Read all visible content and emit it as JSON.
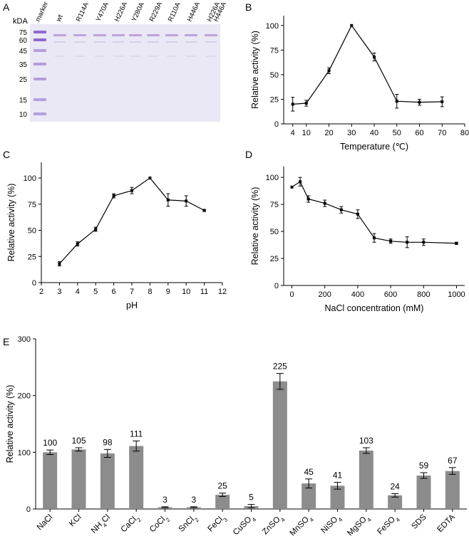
{
  "panel_letters": [
    "A",
    "B",
    "C",
    "D",
    "E"
  ],
  "gel": {
    "unit_label": "kDA",
    "lanes": [
      "marker",
      "wt",
      "R114A",
      "Y470A",
      "H226A",
      "Y280A",
      "R229A",
      "R110A",
      "H446A",
      "H226A\nH446A"
    ],
    "marker_sizes": [
      "75",
      "60",
      "45",
      "35",
      "25",
      "15",
      "10"
    ],
    "colors": {
      "background": "#e9e8f4",
      "band": "#b89ad6",
      "marker": "#8a63c8"
    }
  },
  "chart_data": [
    {
      "id": "B",
      "type": "line",
      "xlabel": "Temperature (℃)",
      "ylabel": "Relative activity (%)",
      "x": [
        4,
        10,
        20,
        30,
        40,
        50,
        60,
        70
      ],
      "values": [
        20,
        21,
        54,
        100,
        68,
        23,
        22,
        22.5
      ],
      "errors": [
        7,
        3,
        3,
        0,
        4,
        7,
        3,
        5
      ],
      "xlim": [
        0,
        80
      ],
      "ylim": [
        0,
        110
      ],
      "xticks": [
        "4",
        "10",
        "20",
        "30",
        "40",
        "50",
        "60",
        "70",
        "80"
      ],
      "yticks": [
        "0",
        "25",
        "50",
        "75",
        "100"
      ]
    },
    {
      "id": "C",
      "type": "line",
      "xlabel": "pH",
      "ylabel": "Relative activity (%)",
      "x": [
        3,
        4,
        5,
        6,
        7,
        8,
        9,
        10,
        11
      ],
      "values": [
        18,
        37,
        51,
        83,
        88,
        100,
        79,
        78,
        69
      ],
      "errors": [
        2,
        2,
        2,
        2,
        3,
        0,
        6,
        5,
        1
      ],
      "xlim": [
        2,
        12
      ],
      "ylim": [
        0,
        115
      ],
      "xticks": [
        "2",
        "3",
        "4",
        "5",
        "6",
        "7",
        "8",
        "9",
        "10",
        "11",
        "12"
      ],
      "yticks": [
        "0",
        "25",
        "50",
        "75",
        "100"
      ]
    },
    {
      "id": "D",
      "type": "line",
      "xlabel": "NaCl concentration (mM)",
      "ylabel": "Relative activity (%)",
      "x": [
        0,
        50,
        100,
        200,
        300,
        400,
        500,
        600,
        700,
        800,
        1000
      ],
      "values": [
        91,
        96,
        80,
        76,
        70,
        66,
        44,
        41,
        40,
        40,
        39
      ],
      "errors": [
        0,
        4,
        3,
        3,
        3,
        4,
        4,
        2,
        5,
        3,
        1
      ],
      "xlim": [
        -50,
        1050
      ],
      "ylim": [
        0,
        110
      ],
      "xticks": [
        "0",
        "200",
        "400",
        "600",
        "800",
        "1000"
      ],
      "yticks": [
        "0",
        "25",
        "50",
        "75",
        "100"
      ]
    },
    {
      "id": "E",
      "type": "bar",
      "xlabel": "",
      "ylabel": "Relative activity  (%)",
      "categories": [
        "NaCl",
        "KCl",
        "NH4Cl",
        "CaCl2",
        "CoCl2",
        "SnCl2",
        "FeCl3",
        "CuSO4",
        "ZnSO4",
        "MnSO4",
        "NiSO4",
        "MgSO4",
        "FeSO4",
        "SDS",
        "EDTA"
      ],
      "category_labels": [
        {
          "base": "NaCl",
          "sub": ""
        },
        {
          "base": "KCl",
          "sub": ""
        },
        {
          "base": "NH",
          "sub": "4",
          "tail": "Cl"
        },
        {
          "base": "CaCl",
          "sub": "2"
        },
        {
          "base": "CoCl",
          "sub": "2"
        },
        {
          "base": "SnCl",
          "sub": "2"
        },
        {
          "base": "FeCl",
          "sub": "3"
        },
        {
          "base": "CuSO",
          "sub": "4"
        },
        {
          "base": "ZnSO",
          "sub": "4"
        },
        {
          "base": "MnSO",
          "sub": "4"
        },
        {
          "base": "NiSO",
          "sub": "4"
        },
        {
          "base": "MgSO",
          "sub": "4"
        },
        {
          "base": "FeSO",
          "sub": "4"
        },
        {
          "base": "SDS",
          "sub": ""
        },
        {
          "base": "EDTA",
          "sub": ""
        }
      ],
      "values": [
        100,
        105,
        98,
        111,
        3,
        3,
        25,
        5,
        225,
        45,
        41,
        103,
        24,
        59,
        67
      ],
      "data_labels": [
        "100",
        "105",
        "98",
        "111",
        "3",
        "3",
        "25",
        "5",
        "225",
        "45",
        "41",
        "103",
        "24",
        "59",
        "67"
      ],
      "errors": [
        4,
        3,
        7,
        9,
        1,
        1,
        3,
        3,
        14,
        8,
        6,
        5,
        3,
        5,
        6
      ],
      "ylim": [
        0,
        300
      ],
      "yticks": [
        "0",
        "100",
        "200",
        "300"
      ],
      "bar_color": "#8c8c8c"
    }
  ]
}
